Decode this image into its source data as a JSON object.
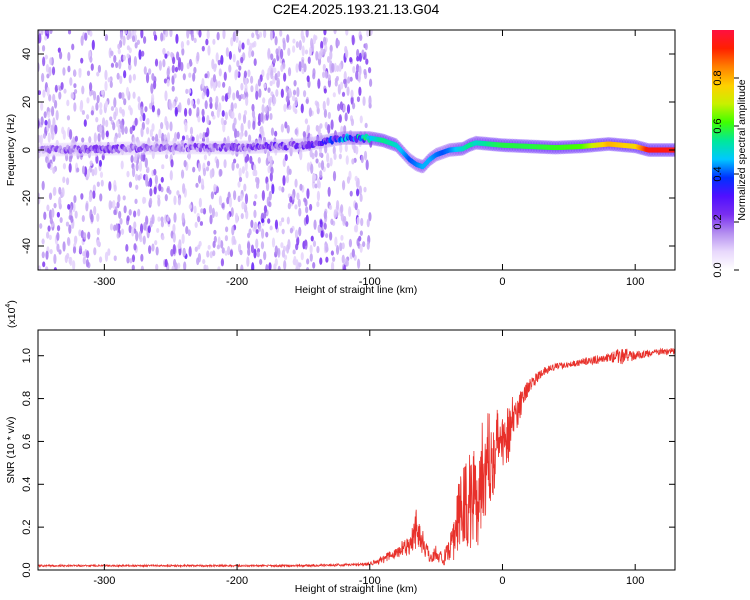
{
  "title": "C2E4.2025.193.21.13.G04",
  "chart_data": [
    {
      "type": "heatmap",
      "xlabel": "Height of straight line (km)",
      "ylabel": "Frequency (Hz)",
      "xlim": [
        -350,
        130
      ],
      "ylim": [
        -50,
        50
      ],
      "xticks": [
        -300,
        -200,
        -100,
        0,
        100
      ],
      "yticks": [
        -40,
        -20,
        0,
        20,
        40
      ],
      "colorbar": {
        "label": "Normalized spectral amplitude",
        "range": [
          0,
          1
        ],
        "ticks": [
          "0.0",
          "0.2",
          "0.4",
          "0.6",
          "0.8"
        ],
        "colors": [
          "#ffffff",
          "#e8d8fc",
          "#b48ef0",
          "#7a2ff0",
          "#5010ff",
          "#0030ff",
          "#00c8ff",
          "#00e89a",
          "#40ff00",
          "#c8f000",
          "#ffd000",
          "#ff8000",
          "#ff2000",
          "#ff1040"
        ]
      },
      "ridge": {
        "x": [
          -350,
          -300,
          -250,
          -200,
          -150,
          -120,
          -100,
          -90,
          -80,
          -75,
          -70,
          -65,
          -60,
          -55,
          -50,
          -45,
          -40,
          -30,
          -25,
          -20,
          -10,
          0,
          20,
          40,
          60,
          80,
          100,
          110,
          130
        ],
        "y": [
          0,
          0.5,
          1,
          1,
          2,
          5,
          5,
          4,
          2,
          -1,
          -4,
          -6,
          -7,
          -4,
          -2,
          -1,
          0,
          0.5,
          2,
          3,
          2.5,
          2,
          1.5,
          1,
          1.5,
          2.5,
          1.5,
          0,
          0
        ],
        "amplitude": [
          0.15,
          0.18,
          0.16,
          0.2,
          0.22,
          0.35,
          0.45,
          0.55,
          0.5,
          0.45,
          0.4,
          0.42,
          0.45,
          0.45,
          0.42,
          0.4,
          0.42,
          0.5,
          0.55,
          0.5,
          0.55,
          0.58,
          0.58,
          0.6,
          0.62,
          0.8,
          0.75,
          0.95,
          0.95
        ]
      },
      "noise_floor_edge_x": -105
    },
    {
      "type": "line",
      "xlabel": "Height of straight line (km)",
      "ylabel": "SNR (10 * v/v)",
      "scale_note": "(x10",
      "scale_exp": "4",
      "scale_close": ")",
      "xlim": [
        -350,
        130
      ],
      "ylim": [
        0,
        1.12
      ],
      "xticks": [
        -300,
        -200,
        -100,
        0,
        100
      ],
      "yticks": [
        "0.0",
        "0.2",
        "0.4",
        "0.6",
        "0.8",
        "1.0"
      ],
      "color": "#e8302a",
      "series": [
        {
          "x": [
            -350,
            -300,
            -250,
            -200,
            -150,
            -110,
            -100,
            -90,
            -80,
            -70,
            -65,
            -60,
            -55,
            -50,
            -45,
            -40,
            -35,
            -30,
            -25,
            -20,
            -15,
            -10,
            -5,
            0,
            5,
            10,
            15,
            20,
            30,
            40,
            50,
            60,
            70,
            80,
            90,
            100,
            110,
            120,
            130
          ],
          "values": [
            0.02,
            0.02,
            0.02,
            0.02,
            0.02,
            0.025,
            0.03,
            0.05,
            0.08,
            0.12,
            0.2,
            0.13,
            0.06,
            0.08,
            0.05,
            0.08,
            0.2,
            0.3,
            0.32,
            0.35,
            0.45,
            0.52,
            0.58,
            0.6,
            0.65,
            0.73,
            0.8,
            0.86,
            0.92,
            0.95,
            0.96,
            0.97,
            0.98,
            0.99,
            1.0,
            1.0,
            1.01,
            1.02,
            1.02
          ],
          "noise": [
            0.004,
            0.004,
            0.004,
            0.004,
            0.005,
            0.006,
            0.01,
            0.02,
            0.03,
            0.05,
            0.1,
            0.06,
            0.03,
            0.04,
            0.03,
            0.06,
            0.15,
            0.2,
            0.25,
            0.28,
            0.25,
            0.22,
            0.2,
            0.15,
            0.14,
            0.1,
            0.06,
            0.03,
            0.02,
            0.015,
            0.015,
            0.015,
            0.02,
            0.02,
            0.04,
            0.02,
            0.015,
            0.015,
            0.015
          ]
        }
      ]
    }
  ]
}
